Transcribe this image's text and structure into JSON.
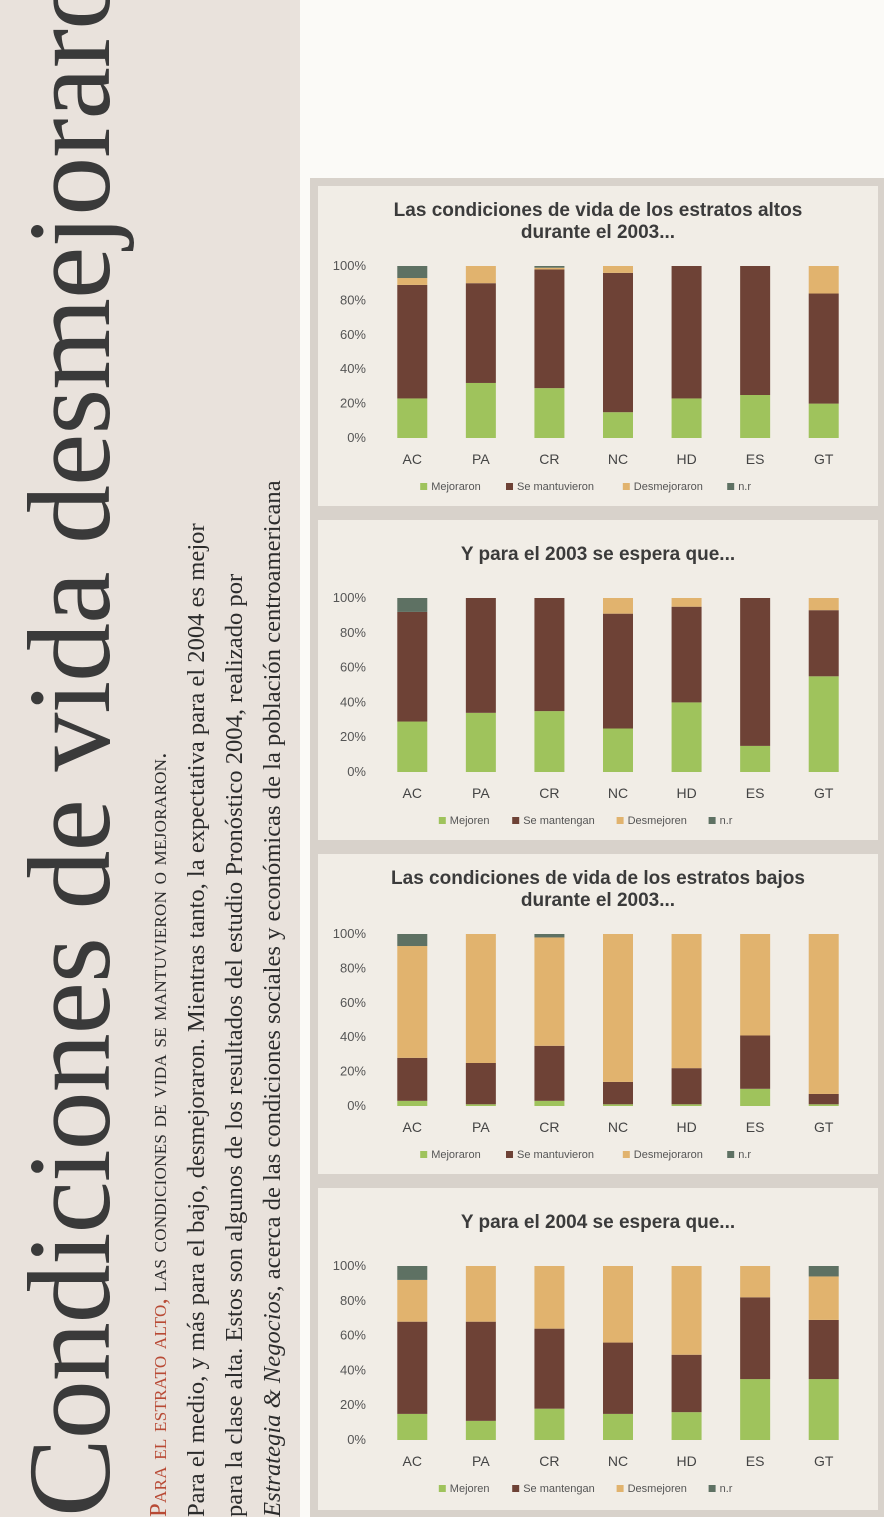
{
  "article": {
    "headline": "Condiciones de vida desmejoraron",
    "kicker_red": "Para el estrato alto,",
    "kicker_black": "las condiciones de vida se mantuvieron o mejoraron.",
    "line1": "Para el medio, y más para el bajo, desmejoraron. Mientras tanto, la expectativa para el 2004 es mejor",
    "line2": "para la clase alta. Estos son algunos de los resultados del estudio Pronóstico 2004, realizado por",
    "line3_italic": "Estrategia & Negocios,",
    "line3_rest": "acerca de las condiciones sociales y económicas de la población centroamericana"
  },
  "colors": {
    "green": "#9fc35c",
    "brown": "#6e4236",
    "tan": "#e1b36e",
    "gray": "#5e7163"
  },
  "chart_data": [
    {
      "type": "bar",
      "stacked": true,
      "title": [
        "Las condiciones de vida de los estratos altos",
        "durante el 2003..."
      ],
      "categories": [
        "AC",
        "PA",
        "CR",
        "NC",
        "HD",
        "ES",
        "GT"
      ],
      "yticks": [
        "100%",
        "80%",
        "60%",
        "40%",
        "20%",
        "0%"
      ],
      "ylim": [
        0,
        100
      ],
      "series": [
        {
          "name": "Mejoraron",
          "color": "green",
          "values": [
            23,
            32,
            29,
            15,
            23,
            25,
            20
          ]
        },
        {
          "name": "Se mantuvieron",
          "color": "brown",
          "values": [
            66,
            58,
            69,
            81,
            77,
            75,
            64
          ]
        },
        {
          "name": "Desmejoraron",
          "color": "tan",
          "values": [
            4,
            10,
            1,
            4,
            0,
            0,
            16
          ]
        },
        {
          "name": "n.r",
          "color": "gray",
          "values": [
            7,
            0,
            1,
            0,
            0,
            0,
            0
          ]
        }
      ]
    },
    {
      "type": "bar",
      "stacked": true,
      "title": [
        "Y para el 2003 se espera que..."
      ],
      "categories": [
        "AC",
        "PA",
        "CR",
        "NC",
        "HD",
        "ES",
        "GT"
      ],
      "yticks": [
        "100%",
        "80%",
        "60%",
        "40%",
        "20%",
        "0%"
      ],
      "ylim": [
        0,
        100
      ],
      "series": [
        {
          "name": "Mejoren",
          "color": "green",
          "values": [
            29,
            34,
            35,
            25,
            40,
            15,
            55
          ]
        },
        {
          "name": "Se mantengan",
          "color": "brown",
          "values": [
            63,
            66,
            65,
            66,
            55,
            85,
            38
          ]
        },
        {
          "name": "Desmejoren",
          "color": "tan",
          "values": [
            0,
            0,
            0,
            9,
            5,
            0,
            7
          ]
        },
        {
          "name": "n.r",
          "color": "gray",
          "values": [
            8,
            0,
            0,
            0,
            0,
            0,
            0
          ]
        }
      ]
    },
    {
      "type": "bar",
      "stacked": true,
      "title": [
        "Las condiciones de vida de los estratos bajos",
        "durante el 2003..."
      ],
      "categories": [
        "AC",
        "PA",
        "CR",
        "NC",
        "HD",
        "ES",
        "GT"
      ],
      "yticks": [
        "100%",
        "80%",
        "60%",
        "40%",
        "20%",
        "0%"
      ],
      "ylim": [
        0,
        100
      ],
      "series": [
        {
          "name": "Mejoraron",
          "color": "green",
          "values": [
            3,
            1,
            3,
            1,
            1,
            10,
            1
          ]
        },
        {
          "name": "Se mantuvieron",
          "color": "brown",
          "values": [
            25,
            24,
            32,
            13,
            21,
            31,
            6
          ]
        },
        {
          "name": "Desmejoraron",
          "color": "tan",
          "values": [
            65,
            75,
            63,
            86,
            78,
            59,
            93
          ]
        },
        {
          "name": "n.r",
          "color": "gray",
          "values": [
            7,
            0,
            2,
            0,
            0,
            0,
            0
          ]
        }
      ]
    },
    {
      "type": "bar",
      "stacked": true,
      "title": [
        "Y para el 2004 se espera que..."
      ],
      "categories": [
        "AC",
        "PA",
        "CR",
        "NC",
        "HD",
        "ES",
        "GT"
      ],
      "yticks": [
        "100%",
        "80%",
        "60%",
        "40%",
        "20%",
        "0%"
      ],
      "ylim": [
        0,
        100
      ],
      "series": [
        {
          "name": "Mejoren",
          "color": "green",
          "values": [
            15,
            11,
            18,
            15,
            16,
            35,
            35
          ]
        },
        {
          "name": "Se mantengan",
          "color": "brown",
          "values": [
            53,
            57,
            46,
            41,
            33,
            47,
            34
          ]
        },
        {
          "name": "Desmejoren",
          "color": "tan",
          "values": [
            24,
            32,
            36,
            44,
            51,
            18,
            25
          ]
        },
        {
          "name": "n.r",
          "color": "gray",
          "values": [
            8,
            0,
            0,
            0,
            0,
            0,
            6
          ]
        }
      ]
    }
  ]
}
